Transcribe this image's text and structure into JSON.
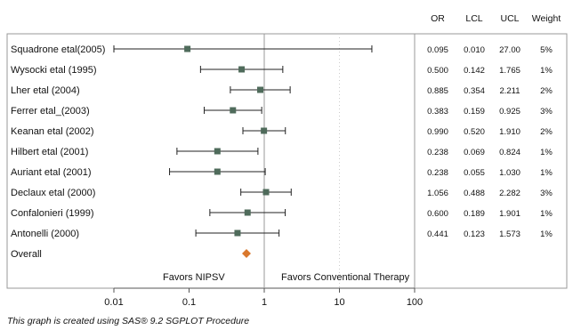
{
  "chart_data": {
    "type": "forest",
    "x_scale": "log",
    "xlim": [
      0.01,
      100
    ],
    "x_ticks": [
      "0.01",
      "0.1",
      "1",
      "10",
      "100"
    ],
    "columns": [
      "OR",
      "LCL",
      "UCL",
      "Weight"
    ],
    "studies": [
      {
        "name": "Squadrone etal(2005)",
        "or": 0.095,
        "lcl": 0.01,
        "ucl": 27.0,
        "or_text": "0.095",
        "lcl_text": "0.010",
        "ucl_text": "27.00",
        "weight": "5%"
      },
      {
        "name": "Wysocki etal (1995)",
        "or": 0.5,
        "lcl": 0.142,
        "ucl": 1.765,
        "or_text": "0.500",
        "lcl_text": "0.142",
        "ucl_text": "1.765",
        "weight": "1%"
      },
      {
        "name": "Lher etal (2004)",
        "or": 0.885,
        "lcl": 0.354,
        "ucl": 2.211,
        "or_text": "0.885",
        "lcl_text": "0.354",
        "ucl_text": "2.211",
        "weight": "2%"
      },
      {
        "name": "Ferrer etal_(2003)",
        "or": 0.383,
        "lcl": 0.159,
        "ucl": 0.925,
        "or_text": "0.383",
        "lcl_text": "0.159",
        "ucl_text": "0.925",
        "weight": "3%"
      },
      {
        "name": "Keanan etal (2002)",
        "or": 0.99,
        "lcl": 0.52,
        "ucl": 1.91,
        "or_text": "0.990",
        "lcl_text": "0.520",
        "ucl_text": "1.910",
        "weight": "2%"
      },
      {
        "name": "Hilbert etal (2001)",
        "or": 0.238,
        "lcl": 0.069,
        "ucl": 0.824,
        "or_text": "0.238",
        "lcl_text": "0.069",
        "ucl_text": "0.824",
        "weight": "1%"
      },
      {
        "name": "Auriant etal (2001)",
        "or": 0.238,
        "lcl": 0.055,
        "ucl": 1.03,
        "or_text": "0.238",
        "lcl_text": "0.055",
        "ucl_text": "1.030",
        "weight": "1%"
      },
      {
        "name": "Declaux etal (2000)",
        "or": 1.056,
        "lcl": 0.488,
        "ucl": 2.282,
        "or_text": "1.056",
        "lcl_text": "0.488",
        "ucl_text": "2.282",
        "weight": "3%"
      },
      {
        "name": "Confalonieri (1999)",
        "or": 0.6,
        "lcl": 0.189,
        "ucl": 1.901,
        "or_text": "0.600",
        "lcl_text": "0.189",
        "ucl_text": "1.901",
        "weight": "1%"
      },
      {
        "name": "Antonelli (2000)",
        "or": 0.441,
        "lcl": 0.123,
        "ucl": 1.573,
        "or_text": "0.441",
        "lcl_text": "0.123",
        "ucl_text": "1.573",
        "weight": "1%"
      }
    ],
    "overall": {
      "name": "Overall",
      "or": 0.58
    },
    "reference_line": 1,
    "reference_dotted": 10,
    "favor_left": "Favors NIPSV",
    "favor_right": "Favors Conventional Therapy",
    "footnote": "This graph is created using SAS® 9.2 SGPLOT Procedure",
    "colors": {
      "marker": "#4f6b5b",
      "overall": "#d9782d",
      "ci": "#222222",
      "frame": "#999999",
      "ref": "#999999"
    }
  }
}
